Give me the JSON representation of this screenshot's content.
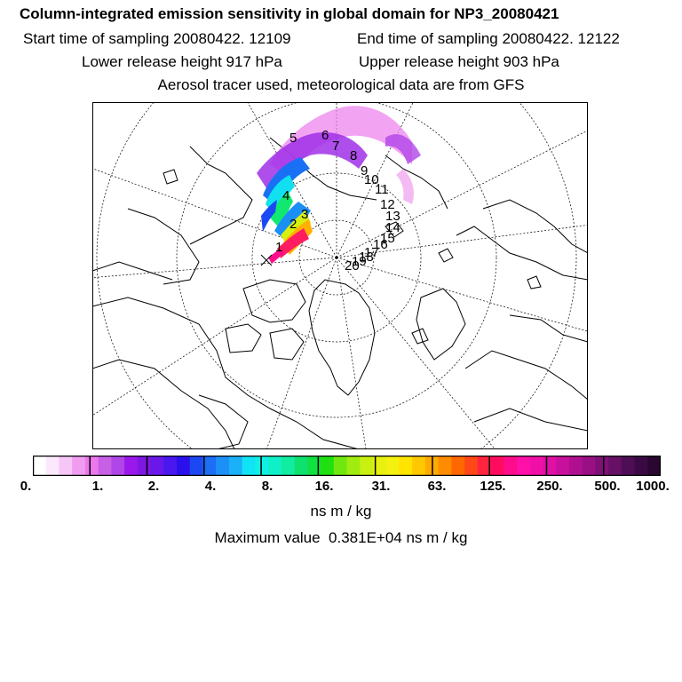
{
  "header": {
    "title": "Column-integrated emission sensitivity in global domain for NP3_20080421",
    "start_time": "Start time of sampling 20080422. 12109",
    "end_time": "End time of sampling 20080422. 12122",
    "lower_release": "Lower release height  917 hPa",
    "upper_release": "Upper release height  903 hPa",
    "tracer_note": "Aerosol tracer used, meteorological data are from GFS"
  },
  "map": {
    "trajectory_labels": [
      "1",
      "2",
      "3",
      "4",
      "5",
      "6",
      "7",
      "8",
      "9",
      "10",
      "11",
      "12",
      "13",
      "14",
      "15",
      "16",
      "17",
      "18",
      "19",
      "20"
    ]
  },
  "colorbar": {
    "tick_labels": [
      "0.",
      "1.",
      "2.",
      "4.",
      "8.",
      "16.",
      "31.",
      "63.",
      "125.",
      "250.",
      "500.",
      "1000."
    ],
    "colors": [
      "#ffffff",
      "#fce8fc",
      "#f6c6f6",
      "#f09cf0",
      "#ec78ec",
      "#c860e6",
      "#b046e8",
      "#9a18ec",
      "#7e18e0",
      "#6a18ea",
      "#4818ee",
      "#2c10ec",
      "#1c48f2",
      "#1c6ef4",
      "#1c90f6",
      "#1cb0f8",
      "#10e4f4",
      "#10f0e4",
      "#10f0c8",
      "#10eca0",
      "#10e070",
      "#10e040",
      "#20e010",
      "#70e810",
      "#a0ec10",
      "#c8f010",
      "#e8f010",
      "#f4f010",
      "#ffe400",
      "#ffc800",
      "#ffaa00",
      "#ff8c00",
      "#ff6800",
      "#ff4818",
      "#ff2440",
      "#ff0c60",
      "#ff0c8c",
      "#ff10a8",
      "#f010a8",
      "#e010a4",
      "#c8109c",
      "#b01090",
      "#981084",
      "#7e1076",
      "#661066",
      "#4e0e56",
      "#3a0a44",
      "#2a0630"
    ]
  },
  "unit": "ns m / kg",
  "max_value": "Maximum value  0.381E+04 ns m / kg"
}
